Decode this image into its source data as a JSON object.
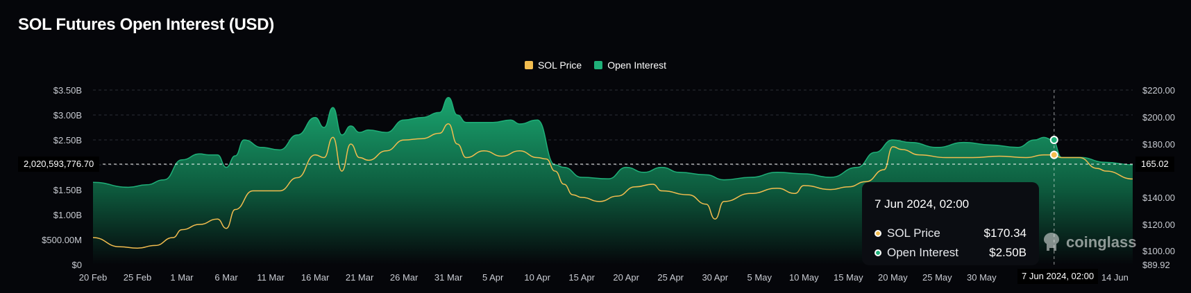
{
  "colors": {
    "price": "#f3bd4f",
    "oi": "#1fb079",
    "background": "#05060a",
    "grid": "#2b2e35"
  },
  "chart_data": {
    "type": "area",
    "title": "SOL Futures Open Interest (USD)",
    "legend": {
      "placement": "top-center",
      "entries": [
        "SOL Price",
        "Open Interest"
      ]
    },
    "grid": true,
    "x_tick_labels": [
      "20 Feb",
      "25 Feb",
      "1 Mar",
      "6 Mar",
      "11 Mar",
      "16 Mar",
      "21 Mar",
      "26 Mar",
      "31 Mar",
      "5 Apr",
      "10 Apr",
      "15 Apr",
      "20 Apr",
      "25 Apr",
      "30 Apr",
      "5 May",
      "10 May",
      "15 May",
      "20 May",
      "25 May",
      "30 May",
      "14 Jun"
    ],
    "x_range": [
      "2024-02-20",
      "2024-06-16"
    ],
    "y_left": {
      "label": "",
      "range": [
        0,
        3.5
      ],
      "unit": "B USD",
      "ticks": [
        "$0",
        "$500.00M",
        "$1.00B",
        "$1.50B",
        "$2.00B",
        "$2.50B",
        "$3.00B",
        "$3.50B"
      ]
    },
    "y_right": {
      "label": "",
      "ticks": [
        "$89.92",
        "$100.00",
        "$120.00",
        "$140.00",
        "$160.00",
        "$180.00",
        "$200.00",
        "$220.00"
      ]
    },
    "series": [
      {
        "name": "Open Interest",
        "axis": "left",
        "x": [
          "2024-02-20",
          "2024-02-24",
          "2024-02-26",
          "2024-02-28",
          "2024-03-01",
          "2024-03-03",
          "2024-03-04",
          "2024-03-05",
          "2024-03-06",
          "2024-03-07",
          "2024-03-08",
          "2024-03-10",
          "2024-03-12",
          "2024-03-14",
          "2024-03-16",
          "2024-03-17",
          "2024-03-18",
          "2024-03-19",
          "2024-03-20",
          "2024-03-21",
          "2024-03-22",
          "2024-03-24",
          "2024-03-26",
          "2024-03-28",
          "2024-03-30",
          "2024-03-31",
          "2024-04-01",
          "2024-04-02",
          "2024-04-05",
          "2024-04-07",
          "2024-04-08",
          "2024-04-10",
          "2024-04-12",
          "2024-04-13",
          "2024-04-15",
          "2024-04-18",
          "2024-04-20",
          "2024-04-22",
          "2024-04-24",
          "2024-04-26",
          "2024-04-29",
          "2024-05-01",
          "2024-05-04",
          "2024-05-07",
          "2024-05-10",
          "2024-05-13",
          "2024-05-16",
          "2024-05-18",
          "2024-05-20",
          "2024-05-22",
          "2024-05-25",
          "2024-05-28",
          "2024-05-31",
          "2024-06-03",
          "2024-06-05",
          "2024-06-06",
          "2024-06-07",
          "2024-06-08",
          "2024-06-10",
          "2024-06-13",
          "2024-06-16"
        ],
        "values": [
          1.65,
          1.55,
          1.6,
          1.7,
          2.1,
          2.22,
          2.2,
          2.2,
          1.95,
          2.18,
          2.5,
          2.35,
          2.3,
          2.6,
          2.95,
          2.75,
          3.15,
          2.6,
          2.78,
          2.65,
          2.7,
          2.65,
          2.9,
          2.95,
          3.05,
          3.35,
          3.0,
          2.85,
          2.85,
          2.9,
          2.82,
          2.9,
          2.0,
          1.95,
          1.75,
          1.72,
          1.95,
          1.85,
          1.95,
          1.85,
          1.8,
          1.7,
          1.75,
          1.85,
          1.82,
          1.75,
          1.95,
          2.25,
          2.5,
          2.45,
          2.35,
          2.45,
          2.4,
          2.35,
          2.5,
          2.55,
          2.5,
          2.15,
          2.15,
          2.05,
          2.0
        ]
      },
      {
        "name": "SOL Price",
        "axis": "right",
        "x": [
          "2024-02-20",
          "2024-02-23",
          "2024-02-25",
          "2024-02-27",
          "2024-02-29",
          "2024-03-01",
          "2024-03-03",
          "2024-03-05",
          "2024-03-06",
          "2024-03-07",
          "2024-03-09",
          "2024-03-12",
          "2024-03-14",
          "2024-03-16",
          "2024-03-17",
          "2024-03-18",
          "2024-03-19",
          "2024-03-20",
          "2024-03-21",
          "2024-03-22",
          "2024-03-24",
          "2024-03-26",
          "2024-03-28",
          "2024-03-30",
          "2024-03-31",
          "2024-04-01",
          "2024-04-02",
          "2024-04-04",
          "2024-04-06",
          "2024-04-08",
          "2024-04-10",
          "2024-04-11",
          "2024-04-12",
          "2024-04-13",
          "2024-04-14",
          "2024-04-15",
          "2024-04-17",
          "2024-04-19",
          "2024-04-21",
          "2024-04-23",
          "2024-04-24",
          "2024-04-27",
          "2024-04-29",
          "2024-04-30",
          "2024-05-01",
          "2024-05-04",
          "2024-05-07",
          "2024-05-09",
          "2024-05-10",
          "2024-05-13",
          "2024-05-15",
          "2024-05-17",
          "2024-05-19",
          "2024-05-20",
          "2024-05-21",
          "2024-05-23",
          "2024-05-26",
          "2024-05-29",
          "2024-06-01",
          "2024-06-04",
          "2024-06-06",
          "2024-06-07",
          "2024-06-08",
          "2024-06-10",
          "2024-06-12",
          "2024-06-13",
          "2024-06-16"
        ],
        "values": [
          110,
          103,
          102,
          104,
          110,
          116,
          120,
          124,
          117,
          131,
          145,
          145,
          155,
          172,
          170,
          185,
          160,
          180,
          170,
          168,
          175,
          183,
          184,
          188,
          195,
          180,
          170,
          175,
          171,
          175,
          170,
          169,
          160,
          150,
          142,
          140,
          137,
          141,
          148,
          150,
          145,
          142,
          135,
          124,
          137,
          143,
          147,
          143,
          149,
          146,
          148,
          152,
          161,
          178,
          176,
          172,
          170,
          170,
          171,
          170,
          172,
          172,
          170,
          170,
          162,
          160,
          154
        ]
      }
    ],
    "crosshair": {
      "date_label": "7 Jun 2024, 02:00",
      "left_value_label": "2,020,593,776.70",
      "right_value_label": "165.02"
    },
    "tooltip": {
      "title": "7 Jun 2024, 02:00",
      "rows": [
        {
          "label": "SOL Price",
          "value": "$170.34"
        },
        {
          "label": "Open Interest",
          "value": "$2.50B"
        }
      ]
    }
  },
  "watermark": {
    "text": "coinglass"
  }
}
